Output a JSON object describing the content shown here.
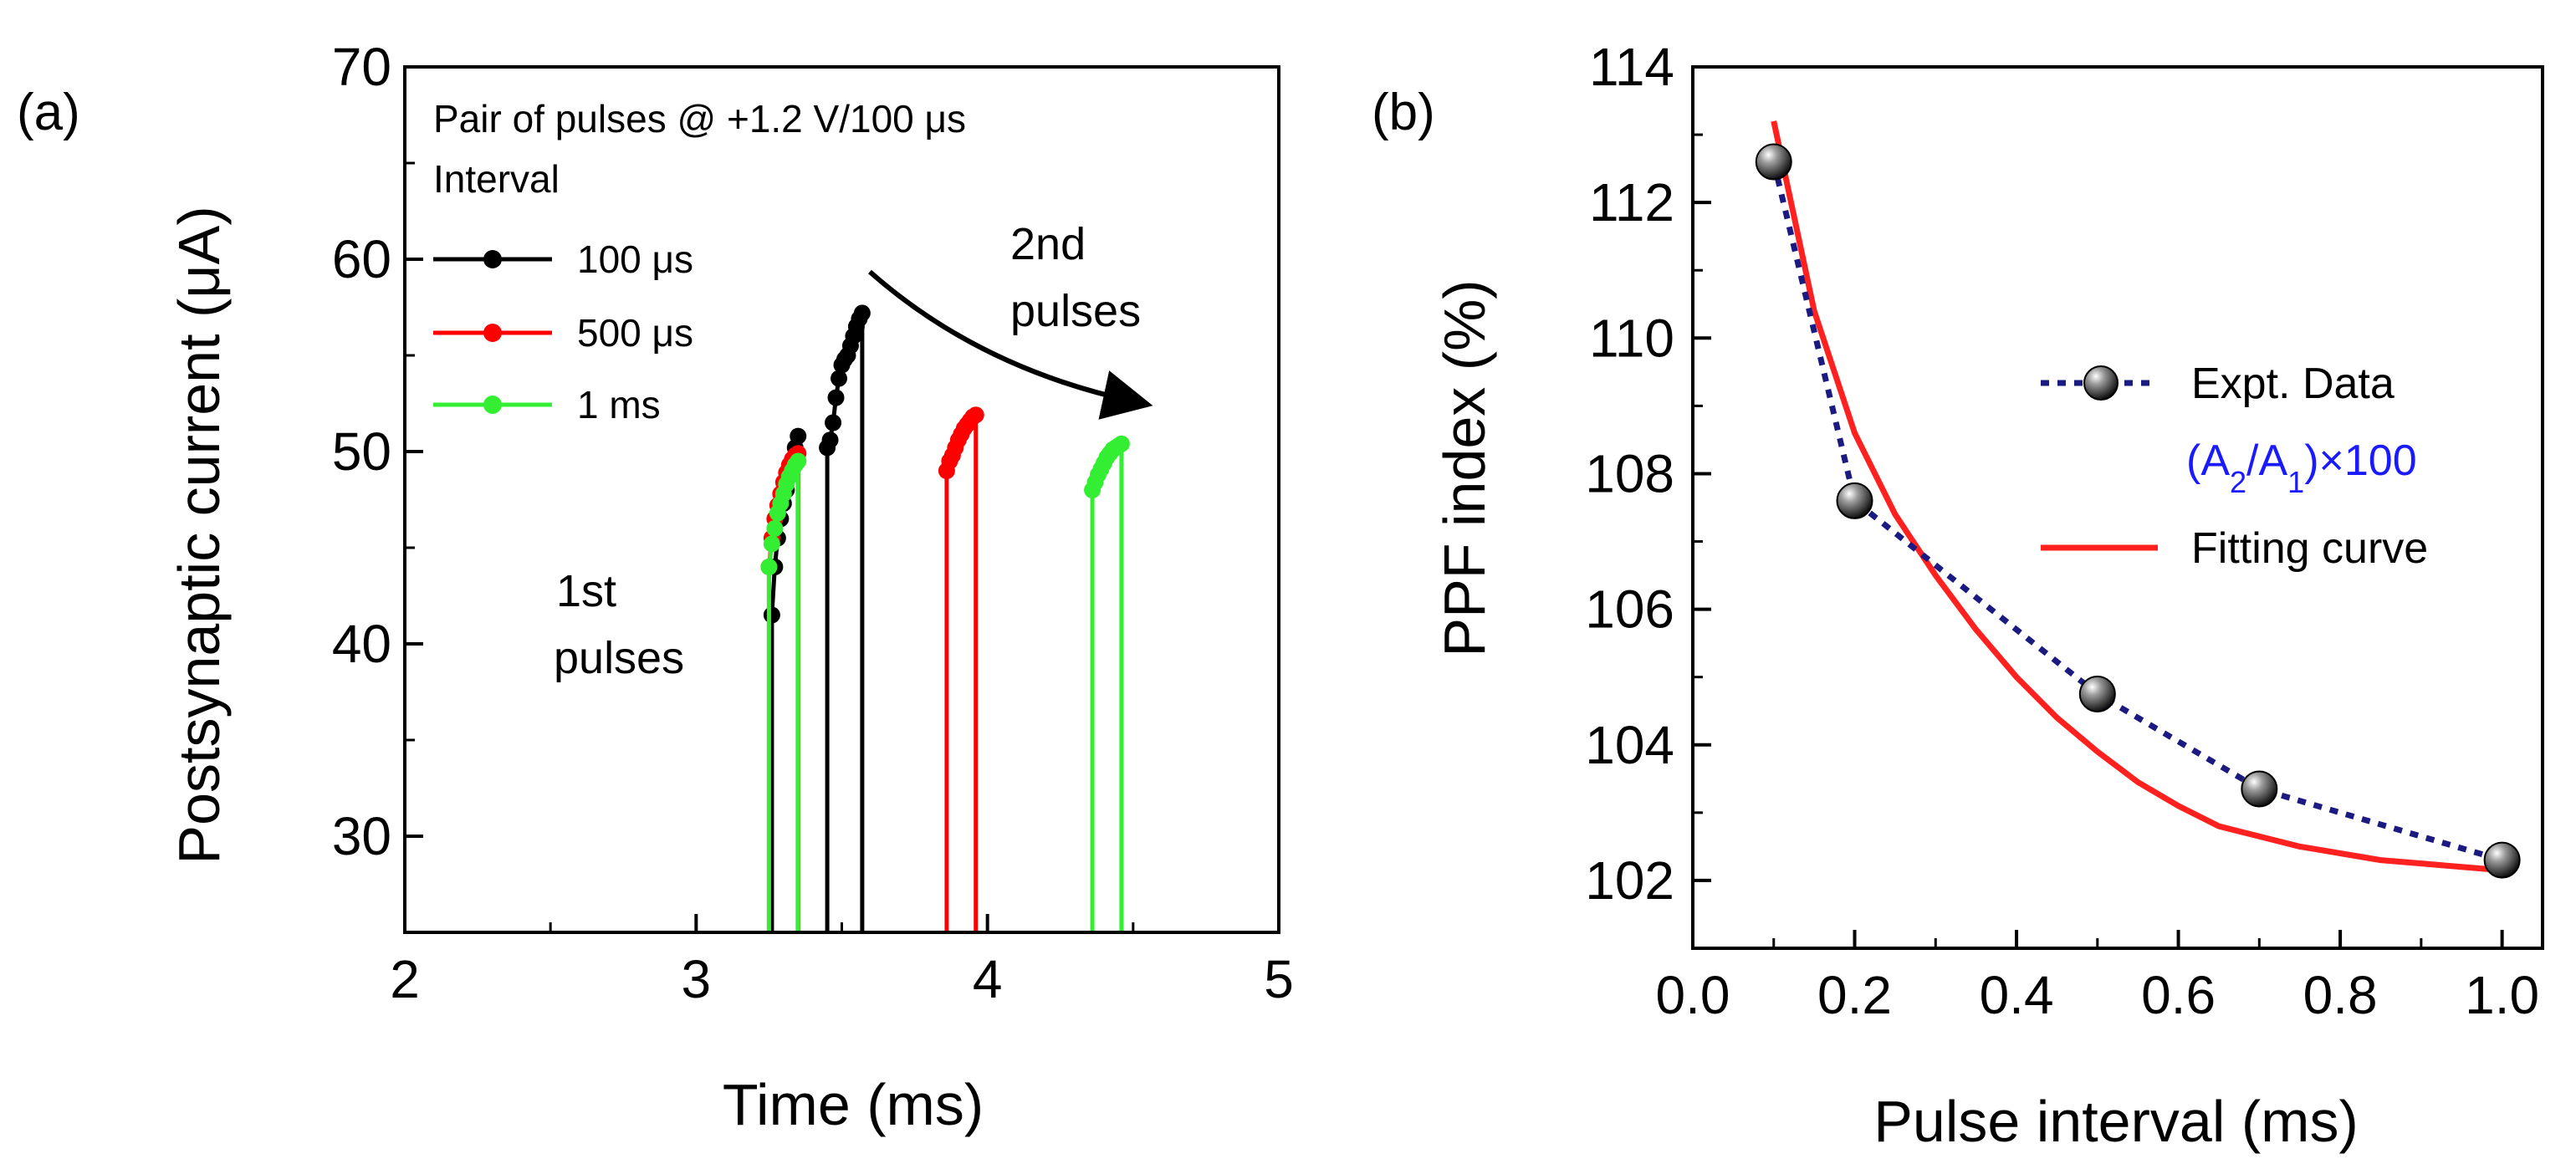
{
  "chart_data": [
    {
      "panel": "(a)",
      "type": "line",
      "xlabel": "Time (ms)",
      "ylabel": "Postsynaptic current (μA)",
      "xlim": [
        2,
        5
      ],
      "ylim": [
        25,
        70
      ],
      "xticks": [
        "2",
        "3",
        "4",
        "5"
      ],
      "yticks": [
        "30",
        "40",
        "50",
        "60",
        "70"
      ],
      "legend_title_line1": "Pair of pulses @ +1.2 V/100 μs",
      "legend_title_line2": "Interval",
      "legend_position": "top-left",
      "annotations": {
        "first_pulses": [
          "1st",
          "pulses"
        ],
        "second_pulses": [
          "2nd",
          "pulses"
        ]
      },
      "series": [
        {
          "name": "100 μs",
          "color": "#000000",
          "pulses": [
            {
              "t": [
                3.26,
                3.27,
                3.28,
                3.29,
                3.3,
                3.31,
                3.32,
                3.33,
                3.34,
                3.35
              ],
              "y": [
                41.5,
                44.0,
                45.5,
                46.5,
                47.3,
                48.0,
                48.8,
                49.5,
                50.2,
                50.8
              ]
            },
            {
              "t": [
                3.45,
                3.46,
                3.47,
                3.48,
                3.49,
                3.5,
                3.51,
                3.52,
                3.53,
                3.54,
                3.55,
                3.56,
                3.57
              ],
              "y": [
                50.2,
                50.6,
                51.5,
                52.8,
                53.8,
                54.5,
                54.8,
                55.0,
                55.5,
                56.0,
                56.5,
                56.9,
                57.2
              ]
            }
          ]
        },
        {
          "name": "500 μs",
          "color": "#ff0000",
          "pulses": [
            {
              "t": [
                3.25,
                3.26,
                3.27,
                3.28,
                3.29,
                3.3,
                3.31,
                3.32,
                3.33,
                3.34,
                3.35
              ],
              "y": [
                44.0,
                45.5,
                46.5,
                47.2,
                47.8,
                48.4,
                48.9,
                49.3,
                49.6,
                49.8,
                49.9
              ]
            },
            {
              "t": [
                3.86,
                3.87,
                3.88,
                3.89,
                3.9,
                3.91,
                3.92,
                3.93,
                3.94,
                3.95,
                3.96
              ],
              "y": [
                49.0,
                49.5,
                49.8,
                50.2,
                50.6,
                50.9,
                51.2,
                51.4,
                51.6,
                51.8,
                51.9
              ]
            }
          ]
        },
        {
          "name": "1  ms",
          "color": "#33ee33",
          "pulses": [
            {
              "t": [
                3.25,
                3.26,
                3.27,
                3.28,
                3.29,
                3.3,
                3.31,
                3.32,
                3.33,
                3.34,
                3.35
              ],
              "y": [
                44.0,
                45.2,
                46.0,
                46.8,
                47.3,
                47.8,
                48.3,
                48.7,
                49.0,
                49.3,
                49.5
              ]
            },
            {
              "t": [
                4.36,
                4.37,
                4.38,
                4.39,
                4.4,
                4.41,
                4.42,
                4.43,
                4.44,
                4.45,
                4.46
              ],
              "y": [
                48.0,
                48.4,
                48.8,
                49.1,
                49.4,
                49.7,
                49.9,
                50.1,
                50.2,
                50.3,
                50.4
              ]
            }
          ]
        }
      ]
    },
    {
      "panel": "(b)",
      "type": "scatter",
      "xlabel": "Pulse interval (ms)",
      "ylabel": "PPF index (%)",
      "xlim": [
        0.0,
        1.05
      ],
      "ylim": [
        101,
        114
      ],
      "xticks": [
        "0.0",
        "0.2",
        "0.4",
        "0.6",
        "0.8",
        "1.0"
      ],
      "yticks": [
        "102",
        "104",
        "106",
        "108",
        "110",
        "112",
        "114"
      ],
      "legend_position": "center-right",
      "series": [
        {
          "name": "Expt. Data",
          "style": "dotted line with spheres",
          "line_color": "#1a1a80",
          "x": [
            0.1,
            0.2,
            0.5,
            0.7,
            1.0
          ],
          "y": [
            112.6,
            107.6,
            104.75,
            103.35,
            102.3
          ]
        },
        {
          "name": "Fitting curve",
          "style": "solid line",
          "line_color": "#ff2020",
          "x": [
            0.1,
            0.15,
            0.2,
            0.25,
            0.3,
            0.35,
            0.4,
            0.45,
            0.5,
            0.55,
            0.6,
            0.65,
            0.7,
            0.75,
            0.8,
            0.85,
            0.9,
            0.95,
            1.0
          ],
          "y": [
            113.2,
            110.4,
            108.6,
            107.4,
            106.5,
            105.7,
            105.0,
            104.4,
            103.9,
            103.45,
            103.1,
            102.8,
            102.65,
            102.5,
            102.4,
            102.3,
            102.25,
            102.2,
            102.15
          ]
        }
      ],
      "legend_formula": {
        "base": "(A",
        "sub1": "2",
        "mid": "/A",
        "sub2": "1",
        "end": ")×100",
        "color": "#1a1aff"
      }
    }
  ]
}
